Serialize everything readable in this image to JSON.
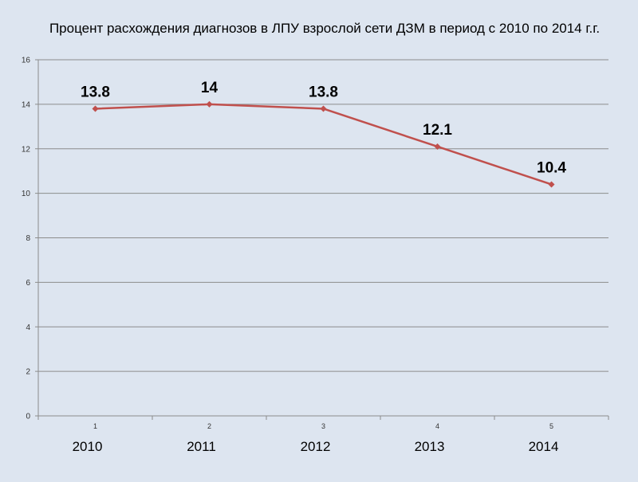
{
  "chart_data": {
    "type": "line",
    "title": "Процент расхождения диагнозов в ЛПУ взрослой сети  ДЗМ в период  с 2010  по 2014 г.г.",
    "xlabel": "",
    "ylabel": "",
    "categories": [
      "1",
      "2",
      "3",
      "4",
      "5"
    ],
    "year_labels": [
      "2010",
      "2011",
      "2012",
      "2013",
      "2014"
    ],
    "series": [
      {
        "name": "Процент расхождения",
        "values": [
          13.8,
          14,
          13.8,
          12.1,
          10.4
        ],
        "data_labels": [
          "13.8",
          "14",
          "13.8",
          "12.1",
          "10.4"
        ],
        "color": "#c0504d"
      }
    ],
    "ylim": [
      0,
      16
    ],
    "yticks": [
      0,
      2,
      4,
      6,
      8,
      10,
      12,
      14,
      16
    ],
    "grid": true,
    "legend": "none"
  },
  "colors": {
    "background": "#dde5f0",
    "gridline": "#8c8c8c",
    "axis": "#8c8c8c",
    "series": "#c0504d"
  }
}
